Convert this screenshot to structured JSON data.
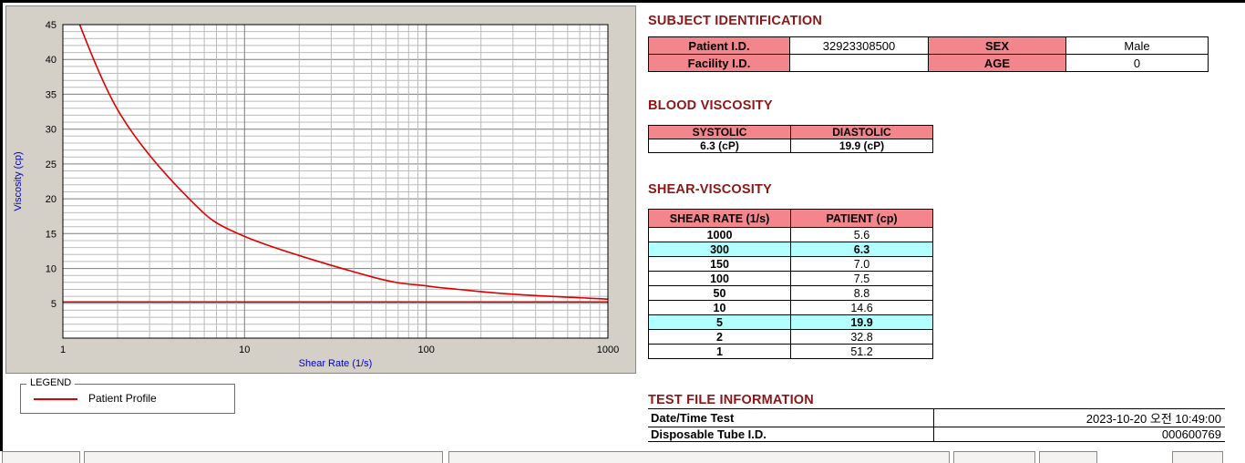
{
  "colors": {
    "heading": "#8b1717",
    "table_header_bg": "#f2868c",
    "highlight_bg": "#b2ffff",
    "axis_label": "#0000cc",
    "series_red": "#dd0000",
    "panel_bg": "#d4d0c8"
  },
  "subject_identification": {
    "title": "SUBJECT IDENTIFICATION",
    "rows": [
      {
        "label": "Patient I.D.",
        "value": "32923308500",
        "label2": "SEX",
        "value2": "Male"
      },
      {
        "label": "Facility I.D.",
        "value": "",
        "label2": "AGE",
        "value2": "0"
      }
    ]
  },
  "blood_viscosity": {
    "title": "BLOOD VISCOSITY",
    "headers": [
      "SYSTOLIC",
      "DIASTOLIC"
    ],
    "values": [
      "6.3 (cP)",
      "19.9 (cP)"
    ]
  },
  "shear_viscosity": {
    "title": "SHEAR-VISCOSITY",
    "headers": [
      "SHEAR RATE (1/s)",
      "PATIENT (cp)"
    ],
    "rows": [
      {
        "rate": "1000",
        "value": "5.6",
        "highlight": false
      },
      {
        "rate": "300",
        "value": "6.3",
        "highlight": true
      },
      {
        "rate": "150",
        "value": "7.0",
        "highlight": false
      },
      {
        "rate": "100",
        "value": "7.5",
        "highlight": false
      },
      {
        "rate": "50",
        "value": "8.8",
        "highlight": false
      },
      {
        "rate": "10",
        "value": "14.6",
        "highlight": false
      },
      {
        "rate": "5",
        "value": "19.9",
        "highlight": true
      },
      {
        "rate": "2",
        "value": "32.8",
        "highlight": false
      },
      {
        "rate": "1",
        "value": "51.2",
        "highlight": false
      }
    ]
  },
  "test_file_information": {
    "title": "TEST FILE INFORMATION",
    "rows": [
      {
        "label": "Date/Time Test",
        "value": "2023-10-20  오전 10:49:00"
      },
      {
        "label": "Disposable Tube I.D.",
        "value": "000600769"
      }
    ]
  },
  "legend": {
    "box_label": "LEGEND",
    "series_label": "Patient Profile",
    "line_color": "#dd0000"
  },
  "chart_data": {
    "type": "line",
    "title": "",
    "xlabel": "Shear Rate (1/s)",
    "ylabel": "Viscosity (cp)",
    "x_scale": "log",
    "xlim": [
      1,
      1000
    ],
    "ylim": [
      0,
      45
    ],
    "x_ticks": [
      1,
      10,
      100,
      1000
    ],
    "y_ticks": [
      5,
      10,
      15,
      20,
      25,
      30,
      35,
      40,
      45
    ],
    "grid": true,
    "legend_position": "below-chart",
    "series": [
      {
        "name": "Patient Profile",
        "color": "#dd0000",
        "x": [
          1,
          2,
          5,
          10,
          50,
          100,
          150,
          300,
          1000
        ],
        "y": [
          51.2,
          32.8,
          19.9,
          14.6,
          8.8,
          7.5,
          7.0,
          6.3,
          5.6
        ]
      }
    ],
    "reference_line": {
      "y": 5.2,
      "color": "#dd0000"
    }
  }
}
